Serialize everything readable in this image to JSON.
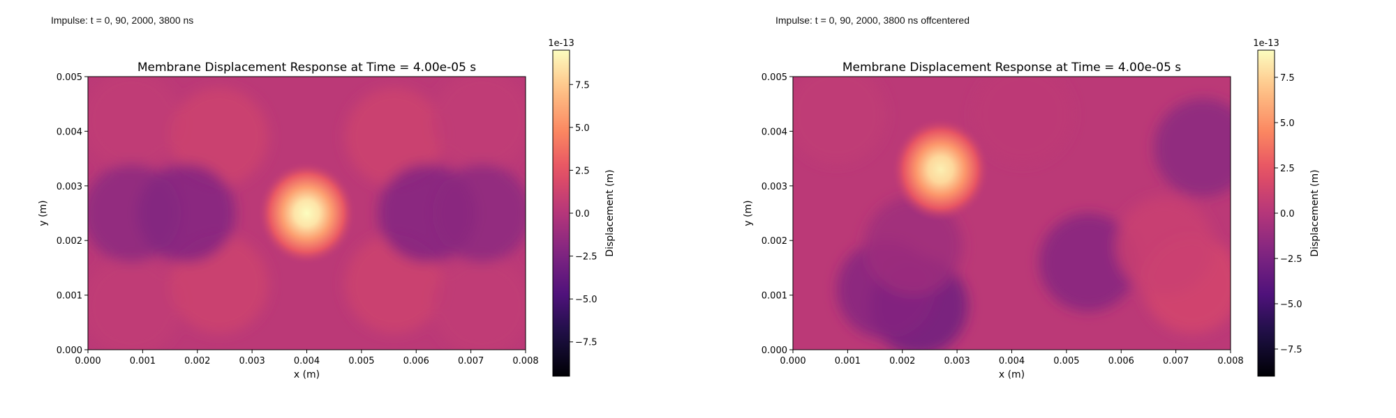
{
  "figure": {
    "left_caption": "Impulse: t = 0, 90, 2000, 3800 ns",
    "right_caption": "Impulse: t = 0, 90, 2000, 3800 ns offcentered"
  },
  "chart_data": [
    {
      "type": "heatmap",
      "title": "Membrane Displacement Response at Time = 4.00e-05 s",
      "xlabel": "x (m)",
      "ylabel": "y (m)",
      "xlim": [
        0,
        0.008
      ],
      "ylim": [
        0,
        0.005
      ],
      "x_ticks": [
        "0.000",
        "0.001",
        "0.002",
        "0.003",
        "0.004",
        "0.005",
        "0.006",
        "0.007",
        "0.008"
      ],
      "y_ticks": [
        "0.000",
        "0.001",
        "0.002",
        "0.003",
        "0.004",
        "0.005"
      ],
      "colormap": "magma",
      "colorbar": {
        "label": "Displacement (m)",
        "offset_text": "1e-13",
        "range": [
          -9.5,
          9.5
        ],
        "ticks": [
          "−7.5",
          "−5.0",
          "−2.5",
          "0.0",
          "2.5",
          "5.0",
          "7.5"
        ],
        "tick_values": [
          -7.5,
          -5.0,
          -2.5,
          0.0,
          2.5,
          5.0,
          7.5
        ]
      },
      "peak": {
        "x": 0.004,
        "y": 0.0025,
        "value": 9.5
      },
      "features": [
        {
          "x": 0.0008,
          "y": 0.0042,
          "value": 0.6
        },
        {
          "x": 0.0024,
          "y": 0.0039,
          "value": 1.2
        },
        {
          "x": 0.0056,
          "y": 0.0039,
          "value": 1.2
        },
        {
          "x": 0.0072,
          "y": 0.0042,
          "value": 0.6
        },
        {
          "x": 0.0008,
          "y": 0.0008,
          "value": 0.6
        },
        {
          "x": 0.0024,
          "y": 0.0012,
          "value": 1.2
        },
        {
          "x": 0.0056,
          "y": 0.0012,
          "value": 1.2
        },
        {
          "x": 0.0072,
          "y": 0.0008,
          "value": 0.6
        },
        {
          "x": 0.0008,
          "y": 0.0025,
          "value": -1.8
        },
        {
          "x": 0.0018,
          "y": 0.0025,
          "value": -2.2
        },
        {
          "x": 0.0062,
          "y": 0.0025,
          "value": -2.2
        },
        {
          "x": 0.0072,
          "y": 0.0025,
          "value": -1.8
        }
      ]
    },
    {
      "type": "heatmap",
      "title": "Membrane Displacement Response at Time = 4.00e-05 s",
      "xlabel": "x (m)",
      "ylabel": "y (m)",
      "xlim": [
        0,
        0.008
      ],
      "ylim": [
        0,
        0.005
      ],
      "x_ticks": [
        "0.000",
        "0.001",
        "0.002",
        "0.003",
        "0.004",
        "0.005",
        "0.006",
        "0.007",
        "0.008"
      ],
      "y_ticks": [
        "0.000",
        "0.001",
        "0.002",
        "0.003",
        "0.004",
        "0.005"
      ],
      "colormap": "magma",
      "colorbar": {
        "label": "Displacement (m)",
        "offset_text": "1e-13",
        "range": [
          -9.0,
          9.0
        ],
        "ticks": [
          "−7.5",
          "−5.0",
          "−2.5",
          "0.0",
          "2.5",
          "5.0",
          "7.5"
        ],
        "tick_values": [
          -7.5,
          -5.0,
          -2.5,
          0.0,
          2.5,
          5.0,
          7.5
        ]
      },
      "peak": {
        "x": 0.0027,
        "y": 0.0033,
        "value": 8.5
      },
      "features": [
        {
          "x": 0.0023,
          "y": 0.0008,
          "value": -3.0
        },
        {
          "x": 0.0017,
          "y": 0.0011,
          "value": -2.0
        },
        {
          "x": 0.0054,
          "y": 0.0016,
          "value": -2.0
        },
        {
          "x": 0.0075,
          "y": 0.0037,
          "value": -1.8
        },
        {
          "x": 0.0073,
          "y": 0.0012,
          "value": 1.5
        },
        {
          "x": 0.0068,
          "y": 0.0019,
          "value": 1.0
        },
        {
          "x": 0.0008,
          "y": 0.0043,
          "value": 0.5
        },
        {
          "x": 0.0042,
          "y": 0.0043,
          "value": 0.4
        },
        {
          "x": 0.0022,
          "y": 0.0019,
          "value": -1.0
        }
      ]
    }
  ]
}
